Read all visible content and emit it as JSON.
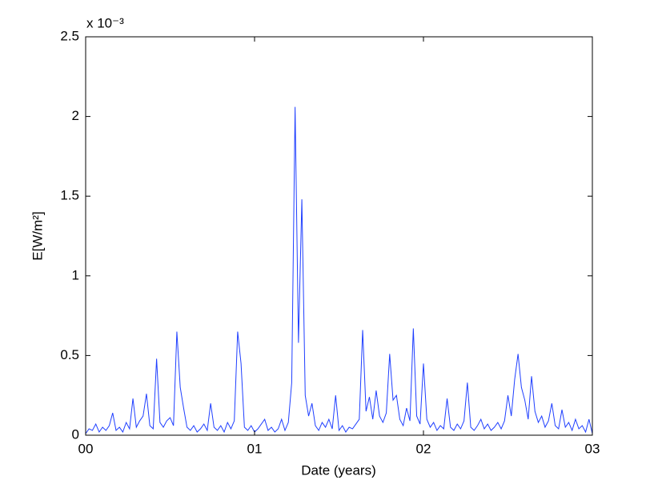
{
  "chart_data": {
    "type": "line",
    "x_label": "Date (years)",
    "y_label": "E[W/m²]",
    "y_multiplier": "x 10⁻³",
    "xlim": [
      0,
      3
    ],
    "xticks": [
      {
        "value": 0,
        "label": "00"
      },
      {
        "value": 1,
        "label": "01"
      },
      {
        "value": 2,
        "label": "02"
      },
      {
        "value": 3,
        "label": "03"
      }
    ],
    "ylim": [
      0,
      2.5
    ],
    "yticks": [
      0,
      0.5,
      1,
      1.5,
      2,
      2.5
    ],
    "grid": false,
    "series": [
      {
        "color": "#1f3fff",
        "x": [
          0,
          0.02,
          0.04,
          0.06,
          0.08,
          0.1,
          0.12,
          0.14,
          0.16,
          0.18,
          0.2,
          0.22,
          0.24,
          0.26,
          0.28,
          0.3,
          0.32,
          0.34,
          0.36,
          0.38,
          0.4,
          0.42,
          0.44,
          0.46,
          0.48,
          0.5,
          0.52,
          0.54,
          0.56,
          0.58,
          0.6,
          0.62,
          0.64,
          0.66,
          0.68,
          0.7,
          0.72,
          0.74,
          0.76,
          0.78,
          0.8,
          0.82,
          0.84,
          0.86,
          0.88,
          0.9,
          0.92,
          0.94,
          0.96,
          0.98,
          1,
          1.02,
          1.04,
          1.06,
          1.08,
          1.1,
          1.12,
          1.14,
          1.16,
          1.18,
          1.2,
          1.22,
          1.24,
          1.26,
          1.28,
          1.3,
          1.32,
          1.34,
          1.36,
          1.38,
          1.4,
          1.42,
          1.44,
          1.46,
          1.48,
          1.5,
          1.52,
          1.54,
          1.56,
          1.58,
          1.6,
          1.62,
          1.64,
          1.66,
          1.68,
          1.7,
          1.72,
          1.74,
          1.76,
          1.78,
          1.8,
          1.82,
          1.84,
          1.86,
          1.88,
          1.9,
          1.92,
          1.94,
          1.96,
          1.98,
          2,
          2.02,
          2.04,
          2.06,
          2.08,
          2.1,
          2.12,
          2.14,
          2.16,
          2.18,
          2.2,
          2.22,
          2.24,
          2.26,
          2.28,
          2.3,
          2.32,
          2.34,
          2.36,
          2.38,
          2.4,
          2.42,
          2.44,
          2.46,
          2.48,
          2.5,
          2.52,
          2.54,
          2.56,
          2.58,
          2.6,
          2.62,
          2.64,
          2.66,
          2.68,
          2.7,
          2.72,
          2.74,
          2.76,
          2.78,
          2.8,
          2.82,
          2.84,
          2.86,
          2.88,
          2.9,
          2.92,
          2.94,
          2.96,
          2.98,
          3
        ],
        "values": [
          0.01,
          0.04,
          0.03,
          0.07,
          0.02,
          0.05,
          0.03,
          0.06,
          0.14,
          0.03,
          0.05,
          0.02,
          0.08,
          0.04,
          0.23,
          0.05,
          0.09,
          0.12,
          0.26,
          0.06,
          0.04,
          0.48,
          0.08,
          0.05,
          0.09,
          0.11,
          0.06,
          0.65,
          0.3,
          0.17,
          0.05,
          0.03,
          0.06,
          0.02,
          0.04,
          0.07,
          0.03,
          0.2,
          0.05,
          0.03,
          0.06,
          0.02,
          0.08,
          0.04,
          0.09,
          0.65,
          0.45,
          0.05,
          0.03,
          0.06,
          0.02,
          0.04,
          0.07,
          0.1,
          0.03,
          0.05,
          0.02,
          0.04,
          0.1,
          0.03,
          0.08,
          0.33,
          2.06,
          0.58,
          1.48,
          0.25,
          0.12,
          0.2,
          0.06,
          0.03,
          0.08,
          0.05,
          0.1,
          0.04,
          0.25,
          0.03,
          0.06,
          0.02,
          0.05,
          0.04,
          0.07,
          0.1,
          0.66,
          0.15,
          0.24,
          0.1,
          0.28,
          0.12,
          0.08,
          0.14,
          0.51,
          0.22,
          0.25,
          0.1,
          0.06,
          0.17,
          0.09,
          0.67,
          0.12,
          0.07,
          0.45,
          0.1,
          0.05,
          0.08,
          0.03,
          0.06,
          0.04,
          0.23,
          0.05,
          0.03,
          0.07,
          0.04,
          0.09,
          0.33,
          0.05,
          0.03,
          0.06,
          0.1,
          0.04,
          0.07,
          0.03,
          0.05,
          0.08,
          0.04,
          0.09,
          0.25,
          0.12,
          0.35,
          0.51,
          0.3,
          0.22,
          0.1,
          0.37,
          0.15,
          0.08,
          0.12,
          0.05,
          0.09,
          0.2,
          0.06,
          0.04,
          0.16,
          0.05,
          0.08,
          0.03,
          0.1,
          0.04,
          0.06,
          0.02,
          0.1,
          0.01
        ]
      }
    ]
  }
}
